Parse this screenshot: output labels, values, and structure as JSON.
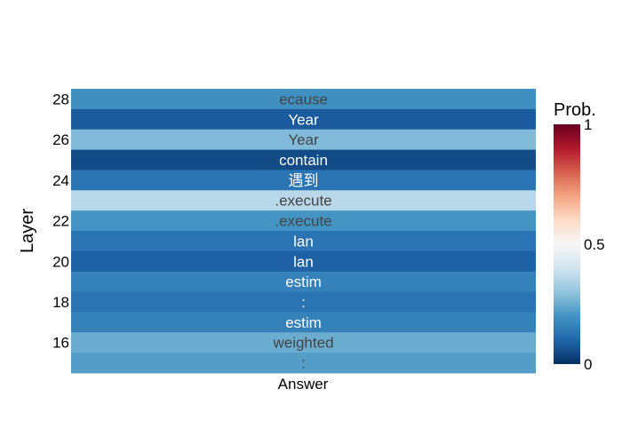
{
  "chart_data": {
    "type": "heatmap",
    "xlabel": "Layer",
    "x_categories": [
      "Answer"
    ],
    "colorbar": {
      "title": "Prob.",
      "min": 0,
      "max": 1,
      "tick_labels": [
        "0",
        "0.5",
        "1"
      ],
      "scale": [
        "#053061",
        "#2166ac",
        "#4393c3",
        "#92c5de",
        "#d1e5f0",
        "#f7f7f7",
        "#fddbc7",
        "#f4a582",
        "#d6604d",
        "#b2182b",
        "#67001f"
      ]
    },
    "y_tick_labels": [
      "28",
      "26",
      "24",
      "22",
      "20",
      "18",
      "16"
    ],
    "rows": [
      {
        "layer": 28,
        "token": "ecause",
        "prob": 0.19
      },
      {
        "layer": 27,
        "token": "Year",
        "prob": 0.08
      },
      {
        "layer": 26,
        "token": "Year",
        "prob": 0.28
      },
      {
        "layer": 25,
        "token": "contain",
        "prob": 0.05
      },
      {
        "layer": 24,
        "token": "遇到",
        "prob": 0.13
      },
      {
        "layer": 23,
        "token": ".execute",
        "prob": 0.36
      },
      {
        "layer": 22,
        "token": ".execute",
        "prob": 0.2
      },
      {
        "layer": 21,
        "token": "lan",
        "prob": 0.13
      },
      {
        "layer": 20,
        "token": "lan",
        "prob": 0.09
      },
      {
        "layer": 19,
        "token": "estim",
        "prob": 0.16
      },
      {
        "layer": 18,
        "token": ":",
        "prob": 0.13
      },
      {
        "layer": 17,
        "token": "estim",
        "prob": 0.16
      },
      {
        "layer": 16,
        "token": "weighted",
        "prob": 0.25
      },
      {
        "layer": 15,
        "token": ":",
        "prob": 0.22
      }
    ]
  }
}
